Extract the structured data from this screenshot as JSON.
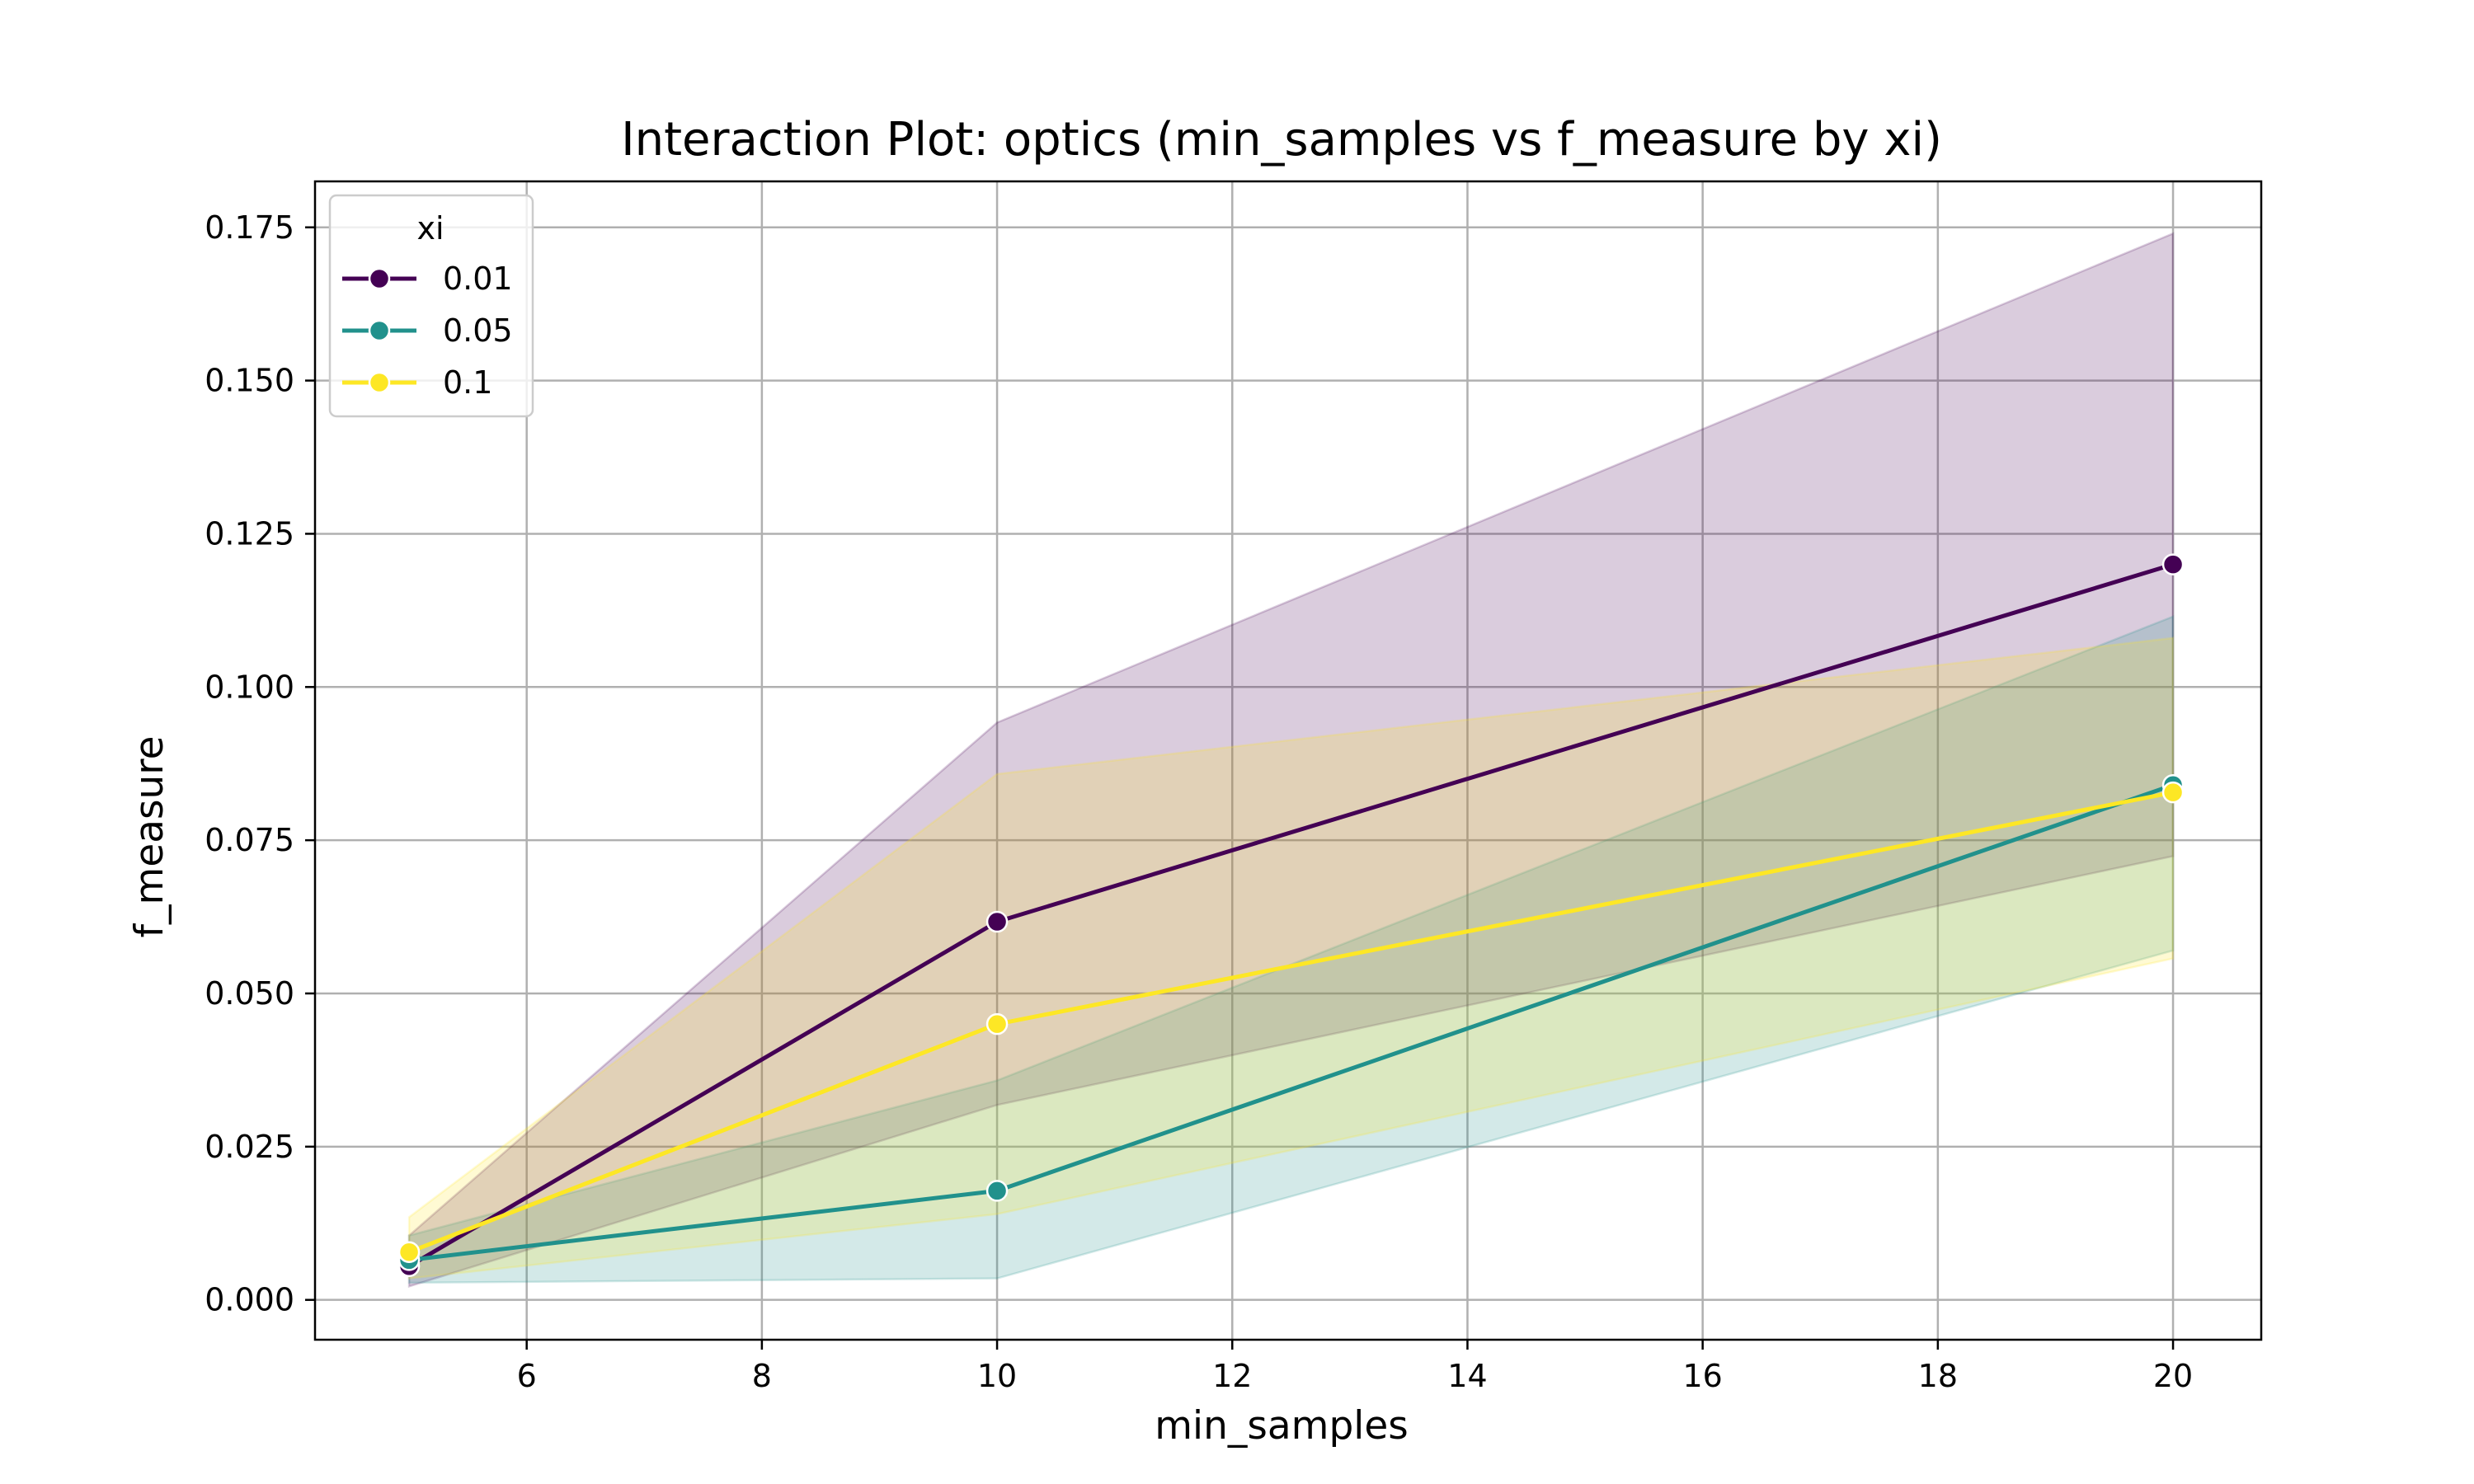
{
  "chart_data": {
    "type": "line",
    "title": "Interaction Plot: optics (min_samples vs f_measure by xi)",
    "xlabel": "min_samples",
    "ylabel": "f_measure",
    "xlim": [
      4.2,
      20.75
    ],
    "ylim": [
      -0.0065,
      0.1825
    ],
    "xticks": [
      6,
      8,
      10,
      12,
      14,
      16,
      18,
      20
    ],
    "yticks": [
      0.0,
      0.025,
      0.05,
      0.075,
      0.1,
      0.125,
      0.15,
      0.175
    ],
    "ytick_labels": [
      "0.000",
      "0.025",
      "0.050",
      "0.075",
      "0.100",
      "0.125",
      "0.150",
      "0.175"
    ],
    "grid": true,
    "legend": {
      "title": "xi",
      "placement": "top-left"
    },
    "x": [
      5,
      10,
      20
    ],
    "series": [
      {
        "name": "0.01",
        "color": "#440154",
        "values": [
          0.0055,
          0.0617,
          0.12
        ],
        "ci_low": [
          0.0022,
          0.0318,
          0.0724
        ],
        "ci_high": [
          0.0105,
          0.0942,
          0.174
        ]
      },
      {
        "name": "0.05",
        "color": "#21918c",
        "values": [
          0.0065,
          0.0178,
          0.084
        ],
        "ci_low": [
          0.0028,
          0.0035,
          0.057
        ],
        "ci_high": [
          0.0105,
          0.0358,
          0.1115
        ]
      },
      {
        "name": "0.1",
        "color": "#fde725",
        "values": [
          0.0078,
          0.045,
          0.0828
        ],
        "ci_low": [
          0.0035,
          0.014,
          0.0557
        ],
        "ci_high": [
          0.0135,
          0.0858,
          0.108
        ]
      }
    ]
  }
}
